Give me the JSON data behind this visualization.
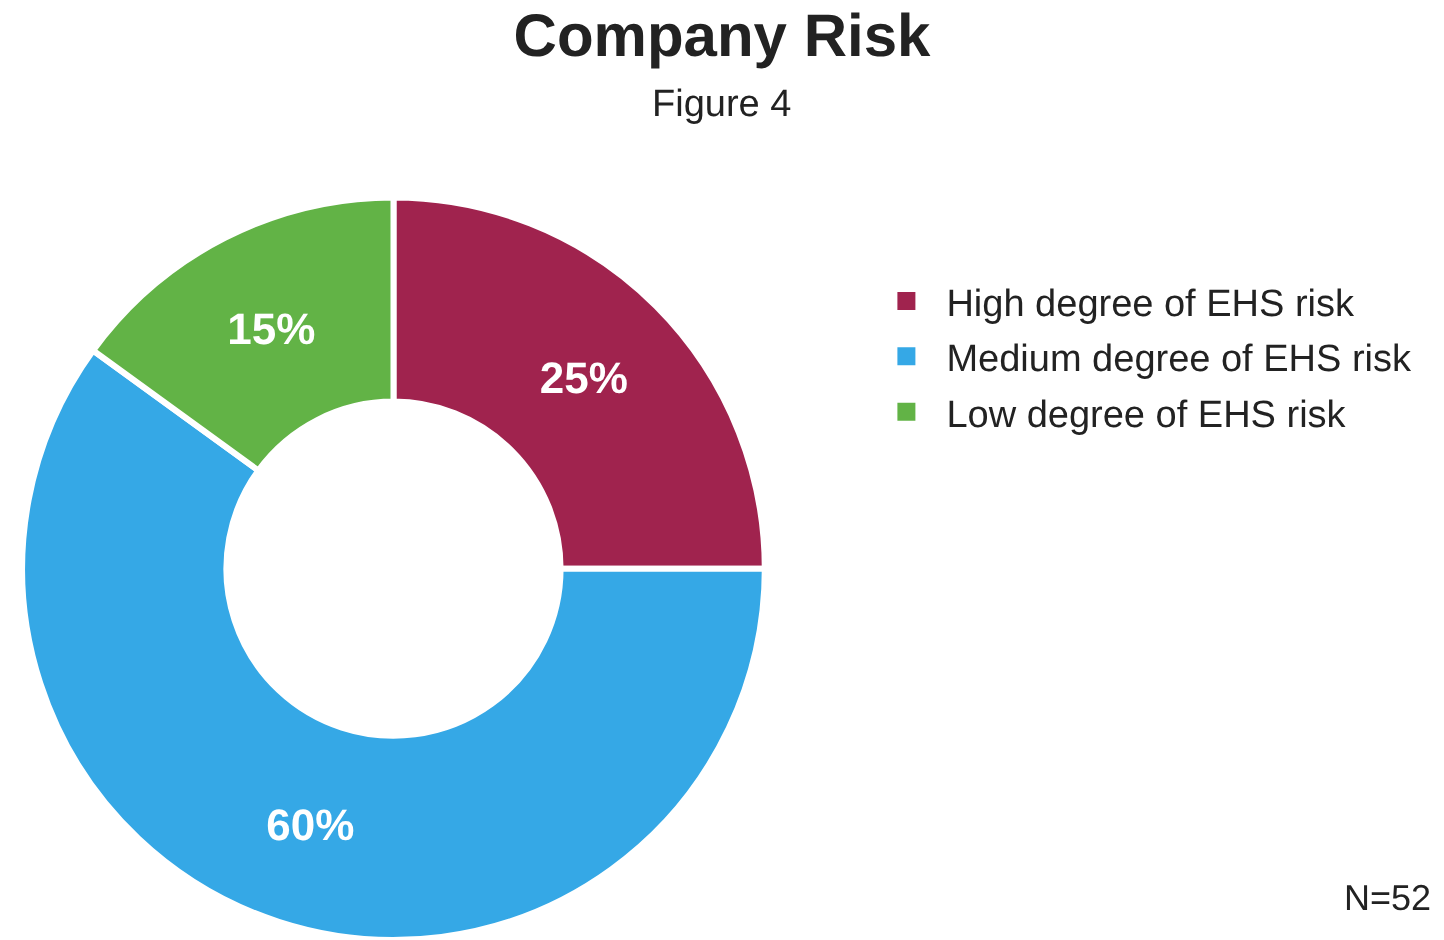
{
  "chart_data": {
    "type": "donut",
    "title": "Company Risk",
    "subtitle": "Figure 4",
    "categories": [
      "High degree of EHS risk",
      "Medium degree of EHS risk",
      "Low degree of EHS risk"
    ],
    "values": [
      25,
      60,
      15
    ],
    "value_labels": [
      "25%",
      "60%",
      "15%"
    ],
    "colors": [
      "#a0234e",
      "#35a8e6",
      "#62b346"
    ],
    "legend": "right",
    "annotations": [
      "N=52"
    ]
  }
}
